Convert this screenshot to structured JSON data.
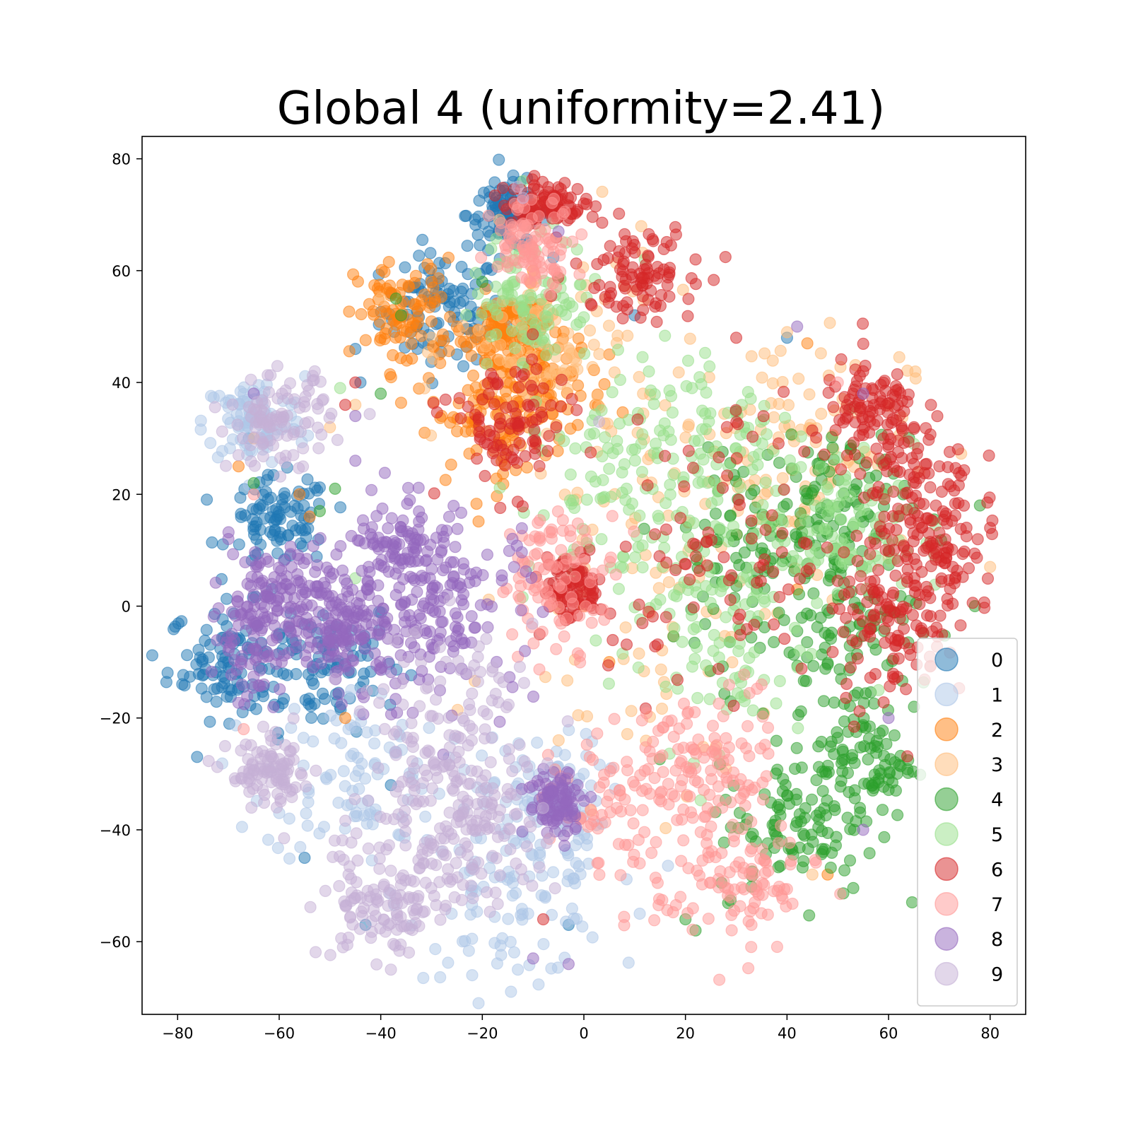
{
  "chart_data": {
    "type": "scatter",
    "title": "Global 4 (uniformity=2.41)",
    "xlabel": "",
    "ylabel": "",
    "xlim": [
      -87,
      87
    ],
    "ylim": [
      -73,
      84
    ],
    "xticks": [
      -80,
      -60,
      -40,
      -20,
      0,
      20,
      40,
      60,
      80
    ],
    "xtick_labels": [
      "−80",
      "−60",
      "−40",
      "−20",
      "0",
      "20",
      "40",
      "60",
      "80"
    ],
    "yticks": [
      -60,
      -40,
      -20,
      0,
      20,
      40,
      60,
      80
    ],
    "ytick_labels": [
      "−60",
      "−40",
      "−20",
      "0",
      "20",
      "40",
      "60",
      "80"
    ],
    "grid": false,
    "legend_position": "lower-right",
    "marker_alpha": 0.5,
    "series": [
      {
        "name": "0",
        "color": "#1f77b4",
        "clusters": [
          [
            -28,
            53,
            6,
            5
          ],
          [
            -52,
            -10,
            8,
            6
          ],
          [
            -70,
            -10,
            6,
            5
          ],
          [
            -15,
            70,
            4,
            3
          ],
          [
            -60,
            15,
            5,
            4
          ]
        ],
        "points": [
          [
            -45,
            46
          ],
          [
            -44,
            40
          ],
          [
            -25,
            45
          ],
          [
            10,
            52
          ],
          [
            40,
            48
          ],
          [
            -66,
            30
          ],
          [
            -55,
            -45
          ],
          [
            -43,
            -57
          ],
          [
            -3,
            -57
          ],
          [
            -38,
            -32
          ]
        ]
      },
      {
        "name": "1",
        "color": "#aec7e8",
        "clusters": [
          [
            -15,
            -52,
            10,
            7
          ],
          [
            -65,
            33,
            5,
            4
          ],
          [
            -45,
            -30,
            9,
            8
          ],
          [
            -8,
            -35,
            6,
            6
          ]
        ],
        "points": [
          [
            -60,
            -37
          ],
          [
            -58,
            -38
          ],
          [
            11,
            -55
          ],
          [
            -3,
            -48
          ],
          [
            -22,
            -66
          ],
          [
            -13,
            -65
          ]
        ]
      },
      {
        "name": "2",
        "color": "#ff7f0e",
        "clusters": [
          [
            -35,
            52,
            5,
            5
          ],
          [
            -18,
            34,
            6,
            6
          ],
          [
            -8,
            40,
            6,
            5
          ],
          [
            -15,
            50,
            4,
            3
          ]
        ],
        "points": [
          [
            -68,
            25
          ],
          [
            -56,
            20
          ],
          [
            -54,
            16
          ],
          [
            -28,
            34
          ],
          [
            -40,
            48
          ],
          [
            44,
            47
          ],
          [
            48,
            -48
          ],
          [
            -47,
            -20
          ],
          [
            5,
            -10
          ],
          [
            0,
            0
          ],
          [
            42,
            3
          ],
          [
            -30,
            58
          ],
          [
            -25,
            50
          ],
          [
            -10,
            60
          ],
          [
            5,
            45
          ]
        ]
      },
      {
        "name": "3",
        "color": "#ffbb78",
        "clusters": [
          [
            -5,
            45,
            10,
            10
          ],
          [
            15,
            5,
            15,
            20
          ],
          [
            40,
            30,
            12,
            10
          ]
        ],
        "points": [
          [
            -65,
            30
          ],
          [
            -50,
            32
          ],
          [
            -45,
            36
          ],
          [
            -40,
            55
          ],
          [
            -30,
            48
          ],
          [
            -10,
            70
          ],
          [
            40,
            49
          ],
          [
            45,
            -48
          ],
          [
            80,
            7
          ]
        ]
      },
      {
        "name": "4",
        "color": "#2ca02c",
        "clusters": [
          [
            48,
            18,
            8,
            6
          ],
          [
            55,
            -28,
            5,
            5
          ],
          [
            42,
            -40,
            8,
            6
          ],
          [
            35,
            10,
            10,
            10
          ],
          [
            50,
            -5,
            8,
            8
          ]
        ],
        "points": [
          [
            -40,
            38
          ],
          [
            -36,
            52
          ],
          [
            -37,
            55
          ],
          [
            -20,
            58
          ],
          [
            -65,
            22
          ],
          [
            -49,
            21
          ],
          [
            -52,
            17
          ],
          [
            22,
            -58
          ],
          [
            65,
            -18
          ],
          [
            78,
            18
          ],
          [
            77,
            0
          ],
          [
            20,
            -56
          ]
        ]
      },
      {
        "name": "5",
        "color": "#98df8a",
        "clusters": [
          [
            8,
            18,
            10,
            10
          ],
          [
            22,
            30,
            10,
            8
          ],
          [
            25,
            -5,
            10,
            10
          ],
          [
            50,
            14,
            8,
            6
          ],
          [
            -10,
            55,
            6,
            6
          ]
        ],
        "points": [
          [
            -48,
            39
          ],
          [
            -12,
            76
          ],
          [
            12,
            62
          ],
          [
            65,
            29
          ],
          [
            -45,
            5
          ]
        ]
      },
      {
        "name": "6",
        "color": "#d62728",
        "clusters": [
          [
            -8,
            72,
            4,
            2
          ],
          [
            65,
            20,
            6,
            8
          ],
          [
            60,
            -5,
            6,
            7
          ],
          [
            70,
            8,
            6,
            6
          ],
          [
            57,
            34,
            5,
            5
          ],
          [
            10,
            60,
            6,
            4
          ],
          [
            30,
            10,
            12,
            12
          ],
          [
            -15,
            32,
            6,
            6
          ],
          [
            -2,
            3,
            3,
            3
          ]
        ],
        "points": [
          [
            0,
            72
          ],
          [
            22,
            62
          ],
          [
            30,
            48
          ],
          [
            -8,
            -56
          ],
          [
            -47,
            36
          ],
          [
            -45,
            40
          ],
          [
            80,
            14
          ],
          [
            70,
            25
          ],
          [
            55,
            42
          ],
          [
            65,
            32
          ]
        ]
      },
      {
        "name": "7",
        "color": "#ff9896",
        "clusters": [
          [
            30,
            -50,
            8,
            6
          ],
          [
            25,
            -30,
            6,
            8
          ],
          [
            10,
            -35,
            8,
            6
          ],
          [
            -10,
            65,
            4,
            4
          ],
          [
            -5,
            5,
            6,
            6
          ]
        ],
        "points": [
          [
            -65,
            20
          ],
          [
            -67,
            -22
          ],
          [
            33,
            -57
          ],
          [
            11,
            -46
          ],
          [
            35,
            -14
          ],
          [
            50,
            40
          ]
        ]
      },
      {
        "name": "8",
        "color": "#9467bd",
        "clusters": [
          [
            -35,
            12,
            5,
            5
          ],
          [
            -58,
            3,
            6,
            4
          ],
          [
            -65,
            -5,
            4,
            6
          ],
          [
            -40,
            -5,
            8,
            6
          ],
          [
            -25,
            0,
            8,
            8
          ],
          [
            -5,
            -35,
            3,
            3
          ],
          [
            -48,
            -4,
            4,
            4
          ]
        ],
        "points": [
          [
            -65,
            38
          ],
          [
            -45,
            34
          ],
          [
            -45,
            26
          ],
          [
            -63,
            -14
          ],
          [
            -70,
            12
          ],
          [
            -10,
            -63
          ],
          [
            -3,
            -64
          ],
          [
            -37,
            2
          ],
          [
            55,
            -40
          ],
          [
            60,
            -20
          ],
          [
            42,
            50
          ],
          [
            55,
            38
          ],
          [
            -5,
            67
          ]
        ]
      },
      {
        "name": "9",
        "color": "#c5b0d5",
        "clusters": [
          [
            -32,
            -42,
            10,
            8
          ],
          [
            -25,
            -20,
            8,
            8
          ],
          [
            -60,
            33,
            5,
            4
          ],
          [
            -62,
            -30,
            4,
            3
          ],
          [
            -40,
            -55,
            6,
            4
          ],
          [
            -20,
            -38,
            6,
            6
          ]
        ],
        "points": [
          [
            -68,
            27
          ],
          [
            -57,
            37
          ],
          [
            -53,
            42
          ],
          [
            -13,
            75
          ],
          [
            -12,
            73
          ],
          [
            3,
            33
          ],
          [
            -38,
            -65
          ]
        ]
      }
    ]
  }
}
